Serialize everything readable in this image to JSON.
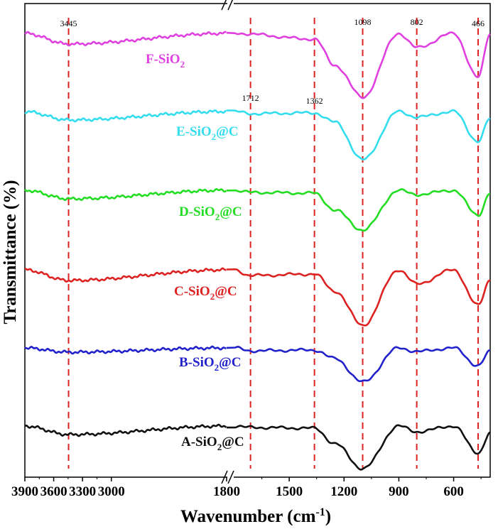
{
  "chart_data": {
    "type": "line",
    "title": "",
    "xlabel": "Wavenumber (cm",
    "xlabel_sup": "-1",
    "xlabel_close": ")",
    "ylabel": "Transmittance (%)",
    "x_axis_broken": true,
    "x_segments": [
      {
        "xlim": [
          3900,
          1800
        ],
        "ticks": [
          "3900",
          "3600",
          "3300",
          "3000",
          "1800"
        ]
      },
      {
        "xlim": [
          1800,
          400
        ],
        "ticks": [
          "1500",
          "1200",
          "900",
          "600"
        ]
      }
    ],
    "reference_lines": [
      {
        "x": 3445,
        "label": "3445",
        "color": "#dd2222"
      },
      {
        "x": 1712,
        "label": "1712",
        "color": "#dd2222"
      },
      {
        "x": 1362,
        "label": "1362",
        "color": "#dd2222"
      },
      {
        "x": 1098,
        "label": "1098",
        "color": "#dd2222"
      },
      {
        "x": 802,
        "label": "802",
        "color": "#dd2222"
      },
      {
        "x": 466,
        "label": "466",
        "color": "#dd2222"
      }
    ],
    "series": [
      {
        "name": "F-SiO",
        "sub": "2",
        "suffix": "",
        "color": "#e040e0",
        "baseline": 47,
        "points": [
          [
            3900,
            0
          ],
          [
            3445,
            -15
          ],
          [
            1800,
            0
          ],
          [
            1362,
            -8
          ],
          [
            1250,
            -45
          ],
          [
            1098,
            -90
          ],
          [
            900,
            0
          ],
          [
            802,
            -20
          ],
          [
            600,
            0
          ],
          [
            466,
            -62
          ],
          [
            400,
            0
          ]
        ]
      },
      {
        "name": "E-SiO",
        "sub": "2",
        "suffix": "@C",
        "color": "#33ddee",
        "baseline": 157,
        "points": [
          [
            3900,
            0
          ],
          [
            3445,
            -12
          ],
          [
            1800,
            0
          ],
          [
            1712,
            -3
          ],
          [
            1362,
            -2
          ],
          [
            1250,
            -15
          ],
          [
            1098,
            -68
          ],
          [
            900,
            0
          ],
          [
            802,
            -8
          ],
          [
            600,
            0
          ],
          [
            466,
            -42
          ],
          [
            400,
            -10
          ]
        ]
      },
      {
        "name": "D-SiO",
        "sub": "2",
        "suffix": "@C",
        "color": "#22dd22",
        "baseline": 268,
        "points": [
          [
            3900,
            0
          ],
          [
            3445,
            -12
          ],
          [
            1800,
            0
          ],
          [
            1712,
            -3
          ],
          [
            1362,
            -4
          ],
          [
            1250,
            -28
          ],
          [
            1098,
            -56
          ],
          [
            900,
            0
          ],
          [
            802,
            -6
          ],
          [
            600,
            0
          ],
          [
            466,
            -35
          ],
          [
            400,
            -4
          ]
        ]
      },
      {
        "name": "C-SiO",
        "sub": "2",
        "suffix": "@C",
        "color": "#dd2222",
        "baseline": 380,
        "points": [
          [
            3900,
            0
          ],
          [
            3445,
            -15
          ],
          [
            1800,
            0
          ],
          [
            1712,
            -8
          ],
          [
            1362,
            -6
          ],
          [
            1250,
            -30
          ],
          [
            1098,
            -78
          ],
          [
            900,
            0
          ],
          [
            802,
            -20
          ],
          [
            600,
            0
          ],
          [
            466,
            -50
          ],
          [
            400,
            -14
          ]
        ]
      },
      {
        "name": "B-SiO",
        "sub": "2",
        "suffix": "@C",
        "color": "#2222cc",
        "baseline": 490,
        "points": [
          [
            3900,
            0
          ],
          [
            3445,
            -6
          ],
          [
            1800,
            0
          ],
          [
            1712,
            -4
          ],
          [
            1362,
            -3
          ],
          [
            1250,
            -15
          ],
          [
            1098,
            -48
          ],
          [
            900,
            0
          ],
          [
            802,
            -5
          ],
          [
            600,
            0
          ],
          [
            466,
            -25
          ],
          [
            400,
            -5
          ]
        ]
      },
      {
        "name": "A-SiO",
        "sub": "2",
        "suffix": "@C",
        "color": "#111111",
        "baseline": 600,
        "points": [
          [
            3900,
            0
          ],
          [
            3445,
            -12
          ],
          [
            1800,
            0
          ],
          [
            1712,
            -2
          ],
          [
            1362,
            -3
          ],
          [
            1250,
            -25
          ],
          [
            1098,
            -60
          ],
          [
            900,
            0
          ],
          [
            802,
            -8
          ],
          [
            600,
            0
          ],
          [
            466,
            -38
          ],
          [
            400,
            -10
          ]
        ]
      }
    ],
    "legend_placement": "inline labels",
    "grid": false
  }
}
